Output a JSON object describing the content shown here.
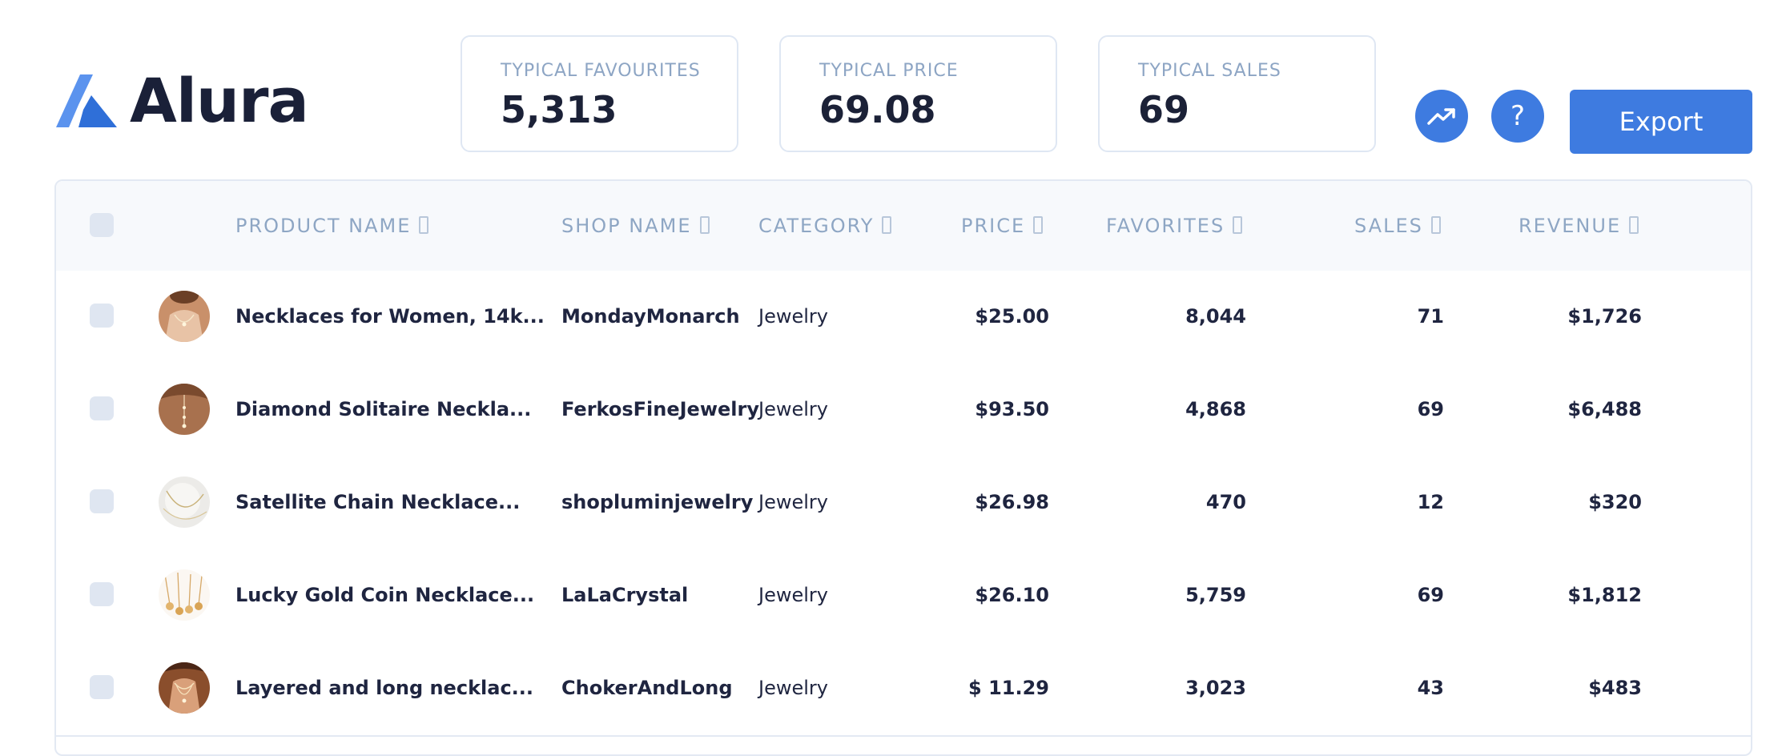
{
  "brand": {
    "name": "Alura"
  },
  "stats": [
    {
      "label": "TYPICAL FAVOURITES",
      "value": "5,313"
    },
    {
      "label": "TYPICAL PRICE",
      "value": "69.08"
    },
    {
      "label": "TYPICAL SALES",
      "value": "69"
    }
  ],
  "actions": {
    "trend_icon": "trending-up-icon",
    "help_symbol": "?",
    "export_label": "Export"
  },
  "colors": {
    "accent": "#3e7be0",
    "logo_light": "#5b93ee",
    "logo_dark": "#2f6fd8",
    "header_text": "#8ea6c4"
  },
  "table": {
    "columns": [
      {
        "label": "PRODUCT NAME"
      },
      {
        "label": "SHOP NAME"
      },
      {
        "label": "CATEGORY"
      },
      {
        "label": "PRICE"
      },
      {
        "label": "FAVORITES"
      },
      {
        "label": "SALES"
      },
      {
        "label": "REVENUE"
      }
    ],
    "rows": [
      {
        "product": "Necklaces for Women, 14k...",
        "shop": "MondayMonarch",
        "category": "Jewelry",
        "price": "$25.00",
        "favorites": "8,044",
        "sales": "71",
        "revenue": "$1,726"
      },
      {
        "product": "Diamond Solitaire Neckla...",
        "shop": "FerkosFineJewelry",
        "category": "Jewelry",
        "price": "$93.50",
        "favorites": "4,868",
        "sales": "69",
        "revenue": "$6,488"
      },
      {
        "product": "Satellite Chain Necklace...",
        "shop": "shopluminjewelry",
        "category": "Jewelry",
        "price": "$26.98",
        "favorites": "470",
        "sales": "12",
        "revenue": "$320"
      },
      {
        "product": "Lucky Gold Coin Necklace...",
        "shop": "LaLaCrystal",
        "category": "Jewelry",
        "price": "$26.10",
        "favorites": "5,759",
        "sales": "69",
        "revenue": "$1,812"
      },
      {
        "product": "Layered and long necklac...",
        "shop": "ChokerAndLong",
        "category": "Jewelry",
        "price": "$ 11.29",
        "favorites": "3,023",
        "sales": "43",
        "revenue": "$483"
      }
    ]
  }
}
